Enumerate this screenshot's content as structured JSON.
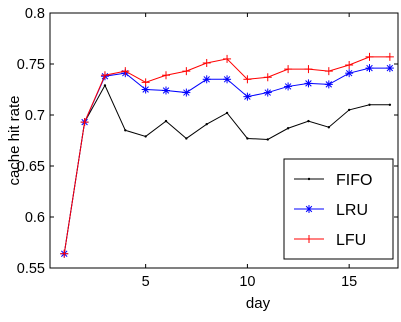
{
  "chart_data": {
    "type": "line",
    "xlabel": "day",
    "ylabel": "cache hit rate",
    "xlim": [
      0.3,
      17.4
    ],
    "ylim": [
      0.55,
      0.8
    ],
    "xticks": [
      5,
      10,
      15
    ],
    "yticks": [
      0.55,
      0.6,
      0.65,
      0.7,
      0.75,
      0.8
    ],
    "ytick_labels": [
      "0.55",
      "0.6",
      "0.65",
      "0.7",
      "0.75",
      "0.8"
    ],
    "grid": false,
    "legend_position": "bottom-right",
    "x": [
      1,
      2,
      3,
      4,
      5,
      6,
      7,
      8,
      9,
      10,
      11,
      12,
      13,
      14,
      15,
      16,
      17
    ],
    "series": [
      {
        "name": "FIFO",
        "color": "#000000",
        "marker": "dot",
        "values": [
          0.564,
          0.693,
          0.729,
          0.685,
          0.679,
          0.694,
          0.677,
          0.691,
          0.702,
          0.677,
          0.676,
          0.687,
          0.694,
          0.688,
          0.705,
          0.71,
          0.71
        ]
      },
      {
        "name": "LRU",
        "color": "#0000ff",
        "marker": "asterisk",
        "values": [
          0.564,
          0.693,
          0.738,
          0.741,
          0.725,
          0.724,
          0.722,
          0.735,
          0.735,
          0.718,
          0.722,
          0.728,
          0.731,
          0.73,
          0.741,
          0.746,
          0.746
        ]
      },
      {
        "name": "LFU",
        "color": "#ff0000",
        "marker": "plus",
        "values": [
          0.564,
          0.693,
          0.739,
          0.743,
          0.732,
          0.739,
          0.743,
          0.751,
          0.755,
          0.735,
          0.737,
          0.745,
          0.745,
          0.743,
          0.749,
          0.757,
          0.757
        ]
      }
    ]
  }
}
